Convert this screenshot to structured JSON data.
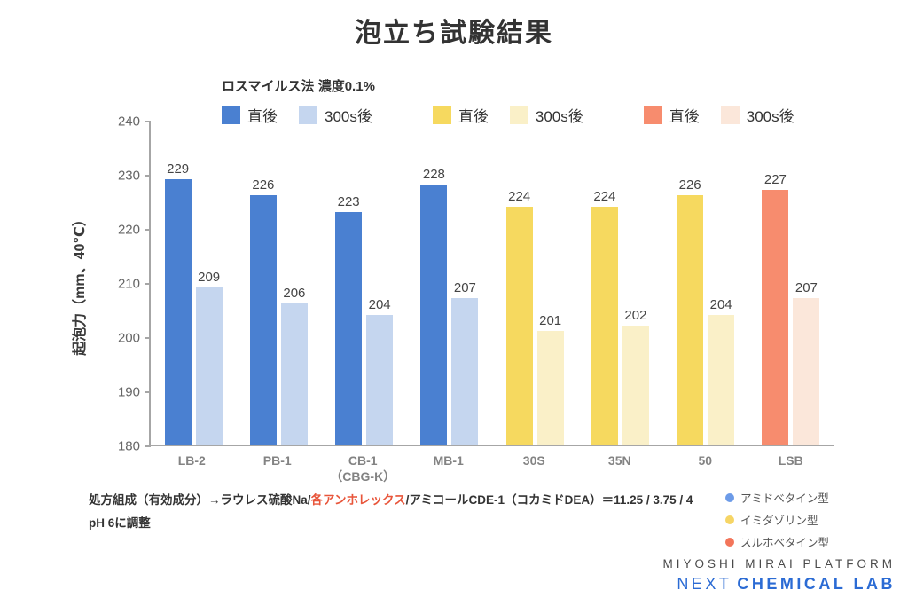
{
  "title": "泡立ち試験結果",
  "chart_data": {
    "type": "bar",
    "title": "泡立ち試験結果",
    "subtitle": "ロスマイルス法 濃度0.1%",
    "ylabel": "起泡力（mm、40℃）",
    "xlabel": "",
    "ylim": [
      180,
      240
    ],
    "yticks": [
      240,
      230,
      220,
      210,
      200,
      190,
      180
    ],
    "grid": false,
    "legend_position": "top",
    "series_labels": {
      "immediate": "直後",
      "after": "300s後"
    },
    "colors": {
      "blue": {
        "immediate": "#4a80d1",
        "after": "#c5d6ef"
      },
      "yellow": {
        "immediate": "#f6d95f",
        "after": "#faf0c8"
      },
      "orange": {
        "immediate": "#f78c6e",
        "after": "#fbe7da"
      }
    },
    "legend_pairs": [
      {
        "immediate_label": "直後",
        "after_label": "300s後",
        "immediate_color": "#4a80d1",
        "after_color": "#c5d6ef"
      },
      {
        "immediate_label": "直後",
        "after_label": "300s後",
        "immediate_color": "#f6d95f",
        "after_color": "#faf0c8"
      },
      {
        "immediate_label": "直後",
        "after_label": "300s後",
        "immediate_color": "#f78c6e",
        "after_color": "#fbe7da"
      }
    ],
    "groups": [
      {
        "label": "LB-2",
        "label2": "",
        "family": "blue",
        "immediate": 229,
        "after": 209
      },
      {
        "label": "PB-1",
        "label2": "",
        "family": "blue",
        "immediate": 226,
        "after": 206
      },
      {
        "label": "CB-1",
        "label2": "（CBG-K）",
        "family": "blue",
        "immediate": 223,
        "after": 204
      },
      {
        "label": "MB-1",
        "label2": "",
        "family": "blue",
        "immediate": 228,
        "after": 207
      },
      {
        "label": "30S",
        "label2": "",
        "family": "yellow",
        "immediate": 224,
        "after": 201
      },
      {
        "label": "35N",
        "label2": "",
        "family": "yellow",
        "immediate": 224,
        "after": 202
      },
      {
        "label": "50",
        "label2": "",
        "family": "yellow",
        "immediate": 226,
        "after": 204
      },
      {
        "label": "LSB",
        "label2": "",
        "family": "orange",
        "immediate": 227,
        "after": 207
      }
    ]
  },
  "footnote": {
    "line1_part1": "処方組成（有効成分）→ラウレス硫酸Na/",
    "line1_highlight": "各アンホレックス",
    "line1_part2": "/アミコールCDE-1（コカミドDEA）＝11.25 / 3.75 / 4",
    "line2": "pH 6に調整",
    "highlight_color": "#e8553a"
  },
  "type_legend": [
    {
      "label": "アミドベタイン型",
      "color": "#6c9be8"
    },
    {
      "label": "イミダゾリン型",
      "color": "#f6d565"
    },
    {
      "label": "スルホベタイン型",
      "color": "#f3755a"
    }
  ],
  "logo": {
    "line1": "MIYOSHI MIRAI PLATFORM",
    "line2_light": "NEXT",
    "line2_bold": "CHEMICAL LAB",
    "accent_color": "#2b6bd4"
  }
}
